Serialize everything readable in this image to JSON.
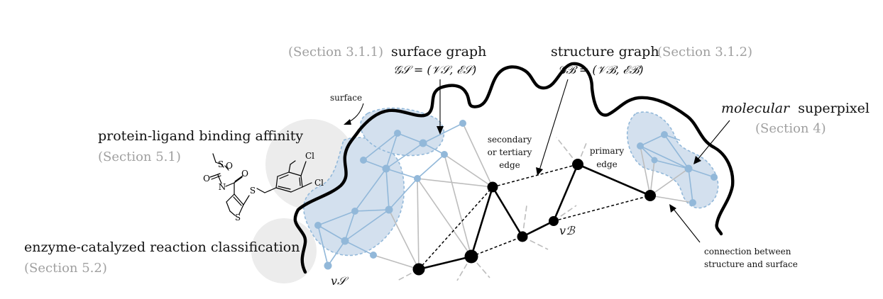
{
  "labels": {
    "section_311": "(Section 3.1.1)",
    "surface_graph": "surface graph",
    "surface_graph_formula": "𝒢𝒮 = (𝒱𝒮, ℰ𝒮)",
    "structure_graph": "structure graph",
    "section_312": "(Section 3.1.2)",
    "structure_graph_formula": "𝒢ℬ = (𝒱ℬ, ℰℬ)",
    "surface": "surface",
    "secondary_line1": "secondary",
    "secondary_line2": "or tertiary",
    "secondary_line3": "edge",
    "primary_line1": "primary",
    "primary_line2": "edge",
    "molecular": "molecular",
    "superpixel": "superpixel",
    "section_4": "(Section 4)",
    "protein_ligand": "protein-ligand binding affinity",
    "section_51": "(Section 5.1)",
    "enzyme": "enzyme-catalyzed reaction classification",
    "section_52": "(Section 5.2)",
    "v_s": "v𝒮",
    "v_b": "vℬ",
    "connection_line1": "connection between",
    "connection_line2": "structure and surface"
  },
  "molecule": {
    "atom_o1": "O",
    "atom_s1": "S",
    "atom_o2": "O",
    "atom_n": "N",
    "atom_o3": "O",
    "atom_s2": "S",
    "atom_s3": "S",
    "atom_cl1": "Cl",
    "atom_cl2": "Cl"
  },
  "colors": {
    "surface_fill": "#d3e0ee",
    "surface_node": "#92b8d9",
    "structure_node": "#000000",
    "edge_gray": "#bdbdbd",
    "circle_gray": "#ececec",
    "label_gray": "#a0a0a0"
  }
}
